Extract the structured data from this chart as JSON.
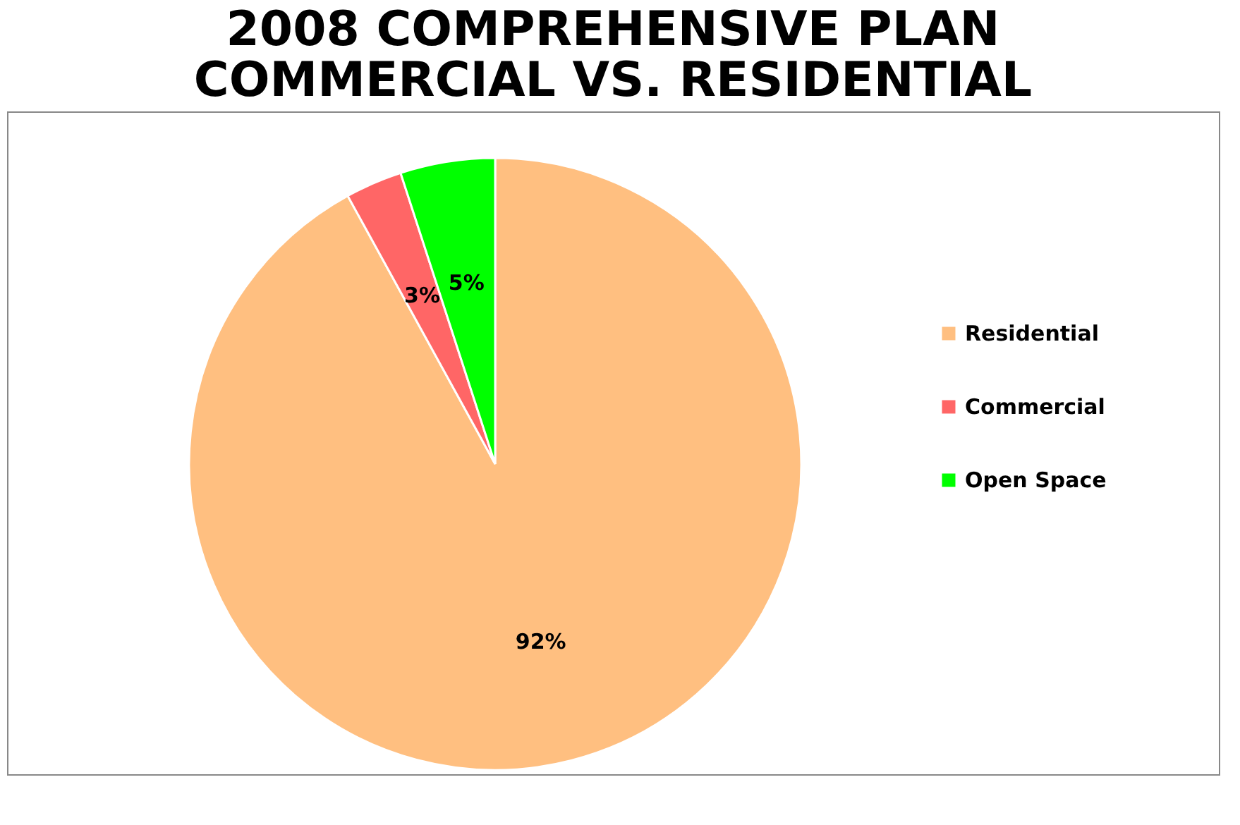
{
  "chart_data": {
    "type": "pie",
    "title": "2008 COMPREHENSIVE PLAN\nCOMMERCIAL VS. RESIDENTIAL",
    "categories": [
      "Residential",
      "Commercial",
      "Open Space"
    ],
    "values": [
      92,
      3,
      5
    ],
    "colors": [
      "#ffbf80",
      "#ff6666",
      "#00ff00"
    ],
    "value_labels": [
      "92%",
      "3%",
      "5%"
    ],
    "legend": "right"
  }
}
